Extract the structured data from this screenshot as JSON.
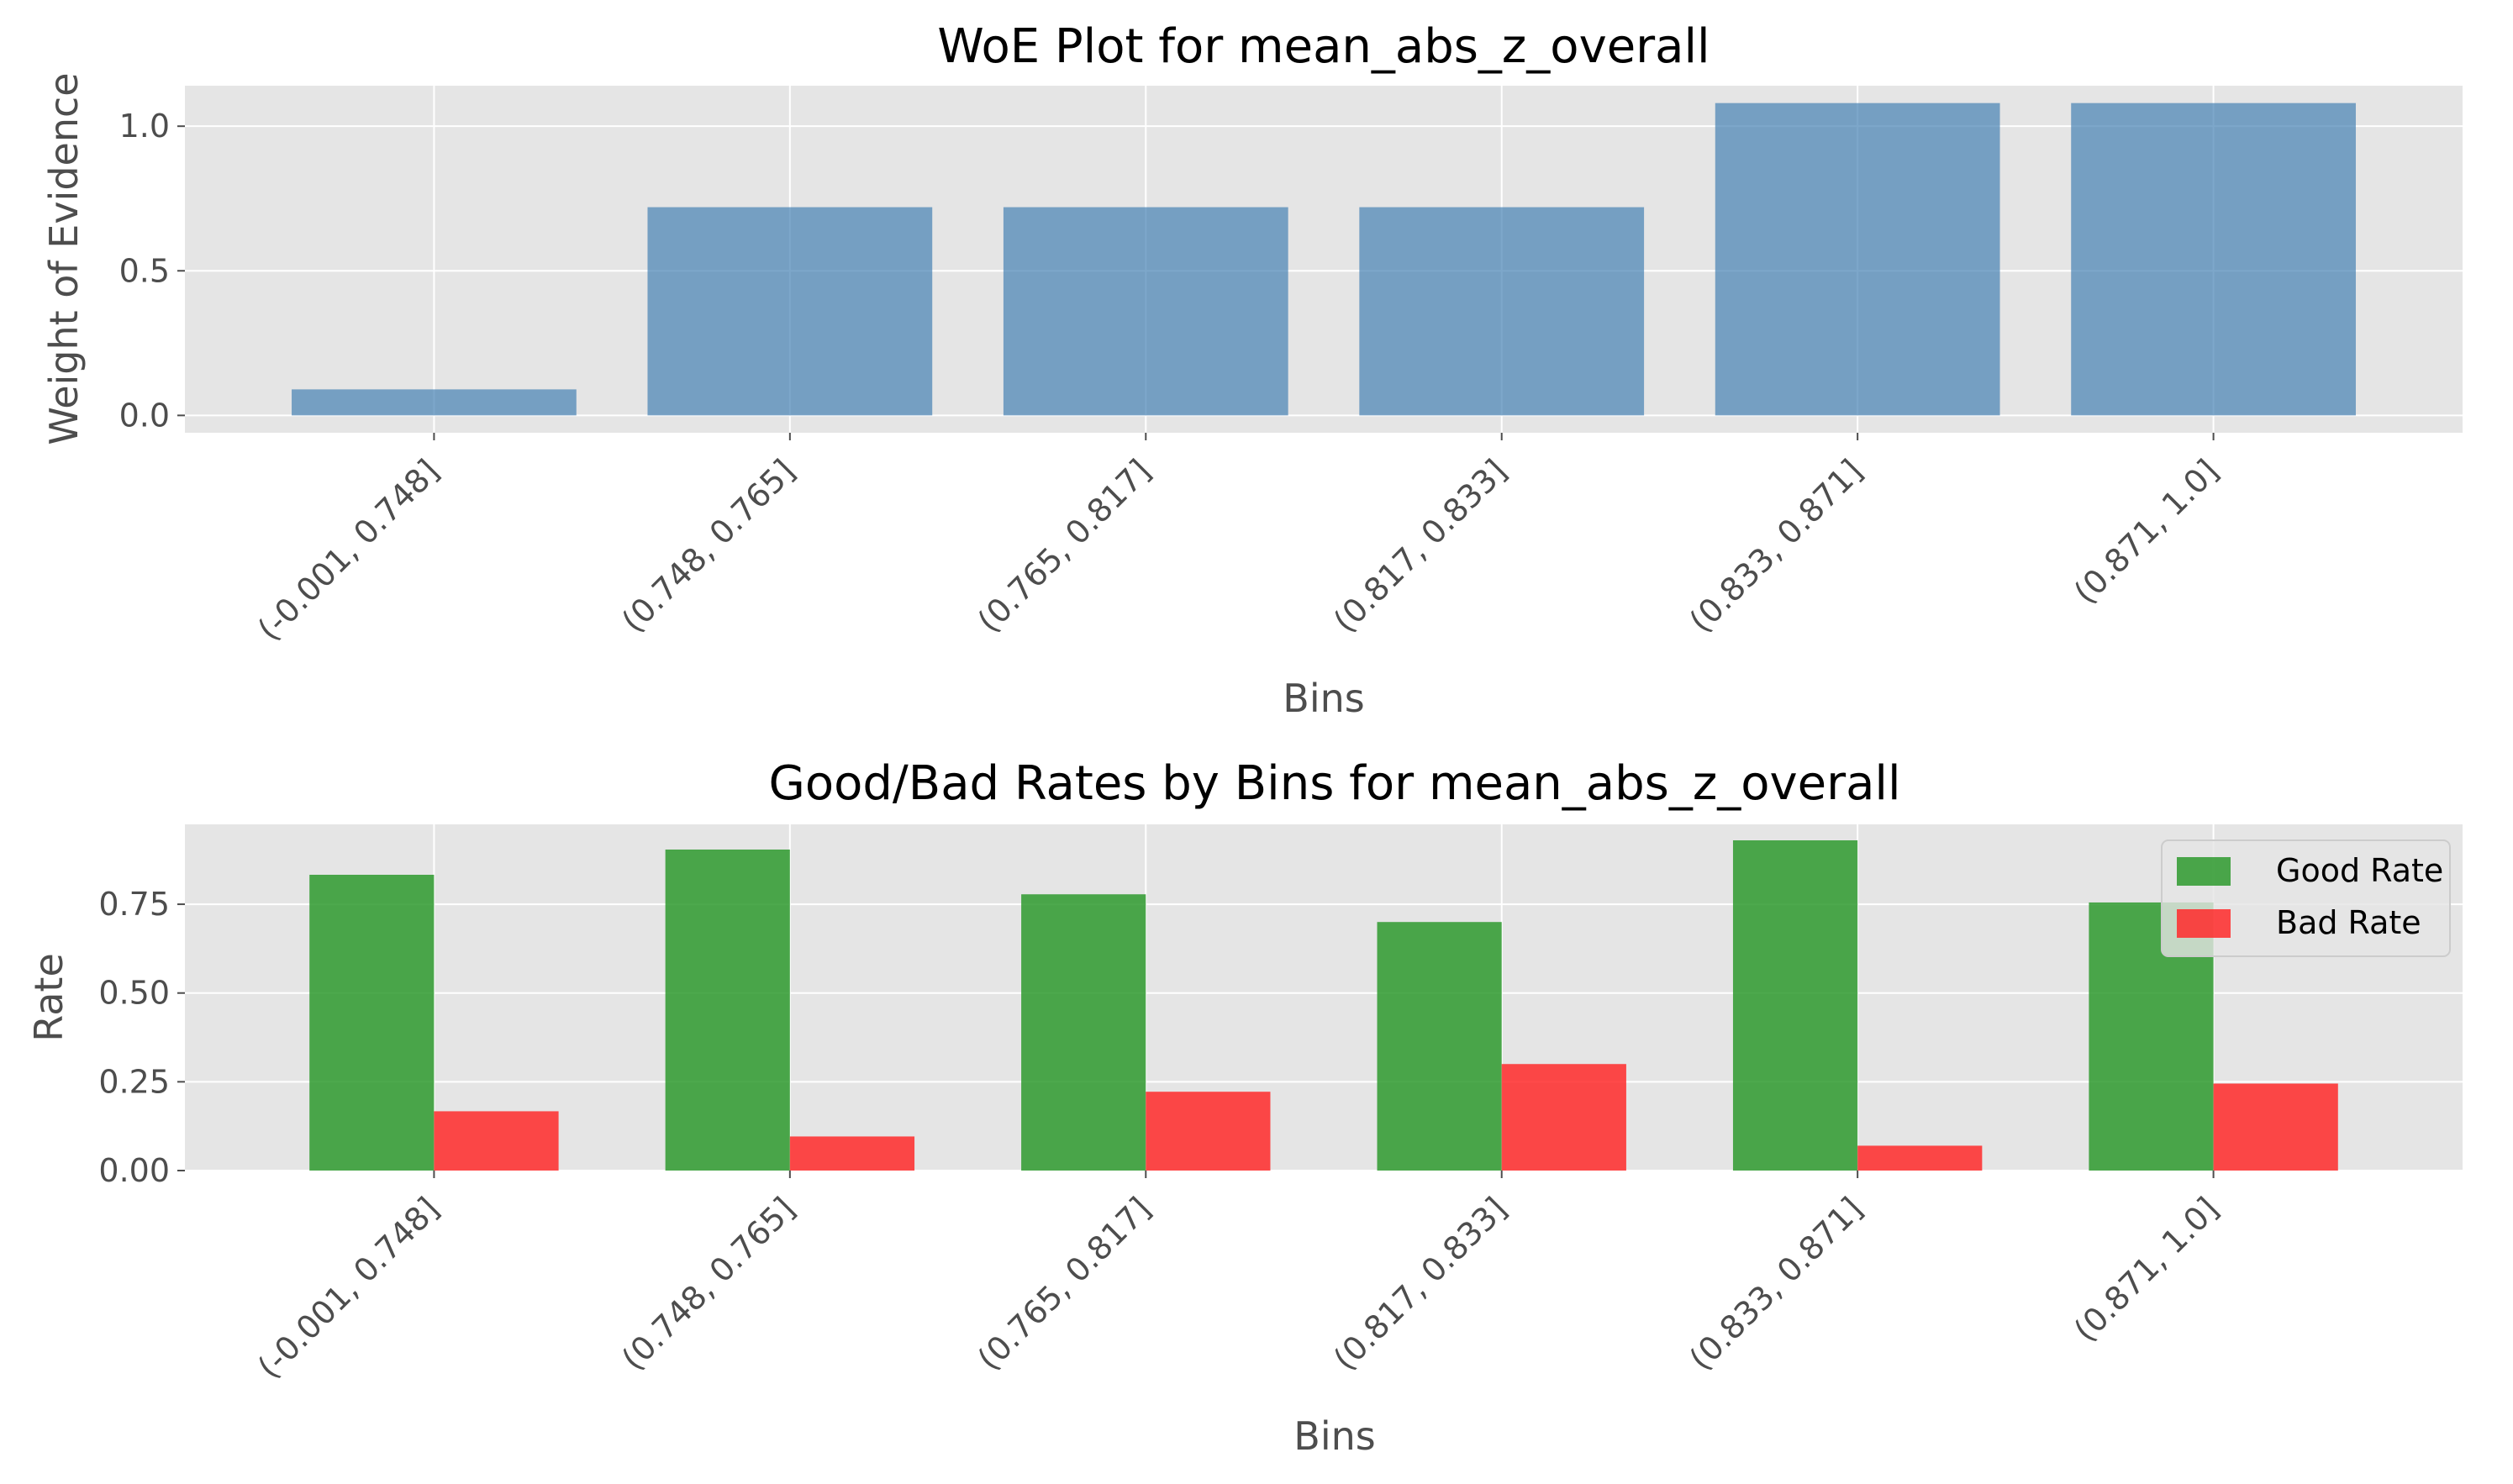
{
  "chart_data": [
    {
      "type": "bar",
      "title": "WoE Plot for mean_abs_z_overall",
      "xlabel": "Bins",
      "ylabel": "Weight of Evidence",
      "categories": [
        "(-0.001, 0.748]",
        "(0.748, 0.765]",
        "(0.765, 0.817]",
        "(0.817, 0.833]",
        "(0.833, 0.871]",
        "(0.871, 1.0]"
      ],
      "values": [
        0.09,
        0.72,
        0.72,
        0.72,
        1.08,
        1.08
      ],
      "ylim": [
        -0.06,
        1.14
      ],
      "yticks": [
        "0.0",
        "0.5",
        "1.0"
      ],
      "grid": true,
      "colors": {
        "bar": "#4682b4",
        "background": "#e5e5e5",
        "grid": "#ffffff"
      }
    },
    {
      "type": "bar",
      "title": "Good/Bad Rates by Bins for mean_abs_z_overall",
      "xlabel": "Bins",
      "ylabel": "Rate",
      "categories": [
        "(-0.001, 0.748]",
        "(0.748, 0.765]",
        "(0.765, 0.817]",
        "(0.817, 0.833]",
        "(0.833, 0.871]",
        "(0.871, 1.0]"
      ],
      "series": [
        {
          "name": "Good Rate",
          "values": [
            0.833,
            0.904,
            0.778,
            0.7,
            0.93,
            0.755
          ],
          "color": "#2e9a2e"
        },
        {
          "name": "Bad Rate",
          "values": [
            0.167,
            0.096,
            0.222,
            0.3,
            0.07,
            0.245
          ],
          "color": "#ff2a2a"
        }
      ],
      "ylim": [
        0,
        0.975
      ],
      "yticks": [
        "0.00",
        "0.25",
        "0.50",
        "0.75"
      ],
      "grid": true,
      "legend": "top-right",
      "colors": {
        "background": "#e5e5e5",
        "grid": "#ffffff"
      }
    }
  ]
}
